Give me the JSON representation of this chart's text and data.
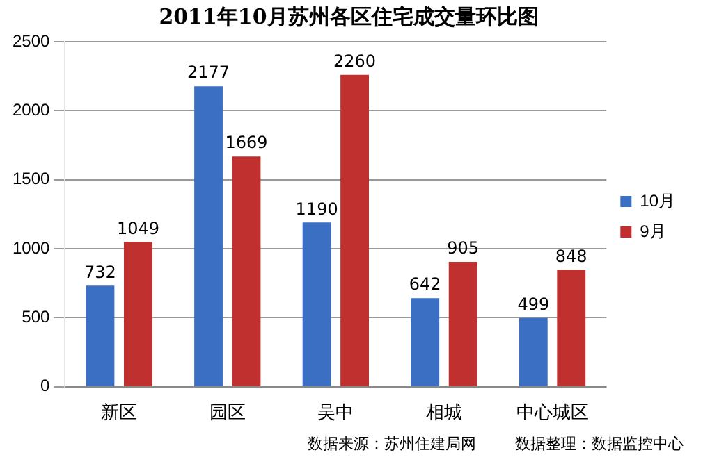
{
  "chart_data": {
    "type": "bar",
    "title": "2011年10月苏州各区住宅成交量环比图",
    "categories": [
      "新区",
      "园区",
      "吴中",
      "相城",
      "中心城区"
    ],
    "series": [
      {
        "name": "10月",
        "color": "#3a6fc4",
        "values": [
          732,
          2177,
          1190,
          642,
          499
        ]
      },
      {
        "name": "9月",
        "color": "#c0302f",
        "values": [
          1049,
          1669,
          2260,
          905,
          848
        ]
      }
    ],
    "ylim": [
      0,
      2500
    ],
    "yticks": [
      0,
      500,
      1000,
      1500,
      2000,
      2500
    ],
    "grid": "y",
    "legend": "right",
    "data_labels": true,
    "annotations": [
      "数据来源：苏州住建局网",
      "数据整理：数据监控中心"
    ]
  }
}
